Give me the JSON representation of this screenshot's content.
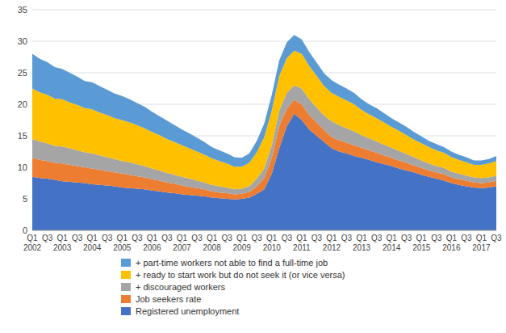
{
  "chart_data": {
    "type": "area",
    "stacked": true,
    "grid": true,
    "legend": "bottom",
    "categories": [
      "Q1\n2002",
      null,
      "Q3",
      null,
      "Q1\n2003",
      null,
      "Q3",
      null,
      "Q1\n2004",
      null,
      "Q3",
      null,
      "Q1\n2005",
      null,
      "Q3",
      null,
      "Q1\n2006",
      null,
      "Q3",
      null,
      "Q1\n2007",
      null,
      "Q3",
      null,
      "Q1\n2008",
      null,
      "Q3",
      null,
      "Q1\n2009",
      null,
      "Q3",
      null,
      "Q1\n2010",
      null,
      "Q3",
      null,
      "Q1\n2011",
      null,
      "Q3",
      null,
      "Q1\n2012",
      null,
      "Q3",
      null,
      "Q1\n2013",
      null,
      "Q3",
      null,
      "Q1\n2014",
      null,
      "Q3",
      null,
      "Q1\n2015",
      null,
      "Q3",
      null,
      "Q1\n2016",
      null,
      "Q3",
      null,
      "Q1\n2017",
      null,
      "Q3"
    ],
    "series": [
      {
        "name": "Registered unemployment",
        "color": "#4472C4",
        "values": [
          8.5,
          8.3,
          8.2,
          8.0,
          7.8,
          7.7,
          7.6,
          7.5,
          7.3,
          7.2,
          7.1,
          7.0,
          6.8,
          6.7,
          6.6,
          6.5,
          6.3,
          6.2,
          6.0,
          5.9,
          5.7,
          5.6,
          5.5,
          5.4,
          5.2,
          5.1,
          5.0,
          4.9,
          5.0,
          5.2,
          5.8,
          6.5,
          9.0,
          13.0,
          16.5,
          18.5,
          17.5,
          16.0,
          15.0,
          14.0,
          13.0,
          12.5,
          12.2,
          11.8,
          11.5,
          11.2,
          10.8,
          10.5,
          10.2,
          9.8,
          9.5,
          9.2,
          8.8,
          8.5,
          8.2,
          7.9,
          7.5,
          7.2,
          7.0,
          6.8,
          6.7,
          6.8,
          7.0
        ]
      },
      {
        "name": "Job seekers rate",
        "color": "#ED7D31",
        "values": [
          3.0,
          2.9,
          2.8,
          2.7,
          2.8,
          2.7,
          2.6,
          2.5,
          2.5,
          2.4,
          2.3,
          2.2,
          2.2,
          2.1,
          2.0,
          1.9,
          1.8,
          1.7,
          1.6,
          1.5,
          1.4,
          1.3,
          1.2,
          1.1,
          1.0,
          0.9,
          0.9,
          0.8,
          0.8,
          0.9,
          1.2,
          1.8,
          2.5,
          3.5,
          2.8,
          2.2,
          2.5,
          2.3,
          2.1,
          1.9,
          1.8,
          1.8,
          1.7,
          1.7,
          1.6,
          1.5,
          1.5,
          1.4,
          1.3,
          1.3,
          1.2,
          1.1,
          1.1,
          1.0,
          1.0,
          1.0,
          0.9,
          0.9,
          0.9,
          0.8,
          0.8,
          0.8,
          0.9
        ]
      },
      {
        "name": "+ discouraged workers",
        "color": "#A5A5A5",
        "values": [
          3.0,
          2.9,
          2.8,
          2.7,
          2.7,
          2.6,
          2.5,
          2.4,
          2.4,
          2.3,
          2.2,
          2.1,
          2.0,
          2.0,
          1.9,
          1.8,
          1.7,
          1.6,
          1.5,
          1.4,
          1.4,
          1.3,
          1.2,
          1.1,
          1.0,
          1.0,
          0.9,
          0.8,
          0.8,
          0.9,
          1.2,
          1.5,
          2.0,
          2.5,
          2.5,
          2.3,
          2.5,
          2.5,
          2.4,
          2.3,
          2.5,
          2.4,
          2.3,
          2.2,
          2.0,
          1.9,
          1.8,
          1.7,
          1.6,
          1.5,
          1.4,
          1.3,
          1.2,
          1.1,
          1.0,
          1.0,
          0.9,
          0.9,
          0.8,
          0.8,
          0.8,
          0.8,
          0.8
        ]
      },
      {
        "name": "+ ready to start work but do not seek it (or vice versa)",
        "color": "#FFC000",
        "values": [
          8.0,
          7.8,
          7.7,
          7.5,
          7.5,
          7.3,
          7.2,
          7.0,
          7.0,
          6.8,
          6.7,
          6.5,
          6.5,
          6.3,
          6.2,
          6.0,
          5.8,
          5.6,
          5.4,
          5.2,
          5.0,
          4.8,
          4.6,
          4.4,
          4.2,
          4.0,
          3.8,
          3.6,
          3.5,
          3.7,
          4.2,
          5.0,
          5.5,
          5.5,
          5.5,
          5.5,
          5.5,
          5.3,
          5.0,
          4.7,
          4.5,
          4.5,
          4.4,
          4.3,
          4.0,
          3.8,
          3.7,
          3.5,
          3.3,
          3.2,
          3.0,
          2.8,
          2.7,
          2.6,
          2.5,
          2.4,
          2.3,
          2.2,
          2.1,
          2.0,
          2.1,
          2.2,
          2.3
        ]
      },
      {
        "name": "+ part-time workers not able to find a full-time job",
        "color": "#5B9BD5",
        "values": [
          5.5,
          5.3,
          5.2,
          5.0,
          4.8,
          4.7,
          4.5,
          4.3,
          4.3,
          4.2,
          4.0,
          3.9,
          3.8,
          3.7,
          3.5,
          3.4,
          3.2,
          3.0,
          2.9,
          2.7,
          2.5,
          2.4,
          2.2,
          2.0,
          1.8,
          1.7,
          1.6,
          1.5,
          1.4,
          1.5,
          1.8,
          2.2,
          2.5,
          2.5,
          2.5,
          2.5,
          2.3,
          2.2,
          2.1,
          2.0,
          2.0,
          1.9,
          1.9,
          1.8,
          1.7,
          1.6,
          1.6,
          1.5,
          1.4,
          1.3,
          1.3,
          1.2,
          1.1,
          1.0,
          1.0,
          0.9,
          0.9,
          0.8,
          0.8,
          0.7,
          0.7,
          0.7,
          0.8
        ]
      }
    ],
    "ylim": [
      0,
      35
    ],
    "yticks": [
      0,
      5,
      10,
      15,
      20,
      25,
      30,
      35
    ]
  }
}
